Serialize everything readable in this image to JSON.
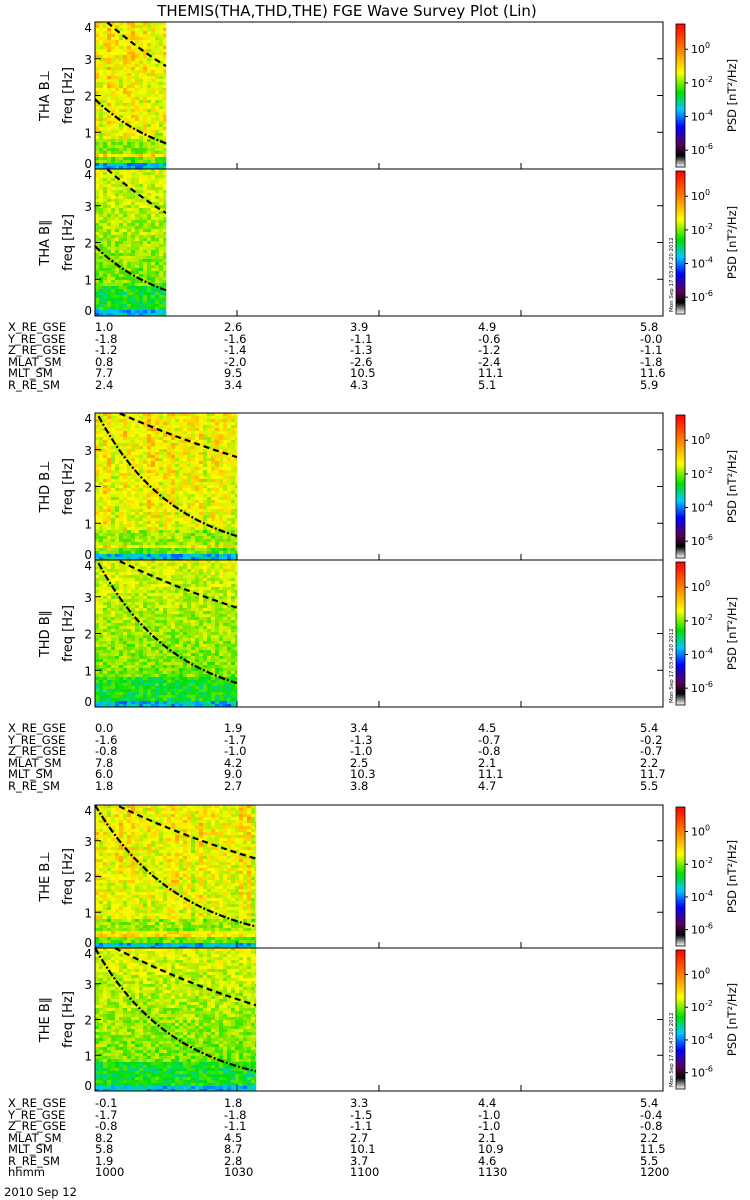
{
  "title": "THEMIS(THA,THD,THE) FGE Wave Survey Plot (Lin)",
  "date_label": "2010 Sep 12",
  "colorbar": {
    "ticks": [
      "10^0",
      "10^-2",
      "10^-4",
      "10^-6"
    ],
    "label": "PSD [nT²/Hz]",
    "stamp": "Mon Sep 17 03:47:20 2012"
  },
  "chart_data": {
    "type": "heatmap",
    "x_time_ticks": [
      "1000",
      "1030",
      "1100",
      "1130",
      "1200"
    ],
    "xlim": [
      "1000",
      "1200"
    ],
    "freq_axis": {
      "label": "freq [Hz]",
      "ticks": [
        0,
        1,
        2,
        3,
        4
      ],
      "ylim": [
        0,
        4
      ]
    },
    "colorbar_range_log10_psd": [
      -7,
      1.5
    ],
    "panels": [
      {
        "probe": "THA",
        "component": "B⊥",
        "ylabel": "THA B⊥",
        "data_end": "1015",
        "solid_curve": {
          "start": 1.9,
          "end": 0.7
        },
        "dashed_curve": {
          "start": 4.3,
          "end": 2.8
        }
      },
      {
        "probe": "THA",
        "component": "B∥",
        "ylabel": "THA B∥",
        "data_end": "1015",
        "solid_curve": {
          "start": 1.9,
          "end": 0.7
        },
        "dashed_curve": {
          "start": 4.3,
          "end": 2.8
        }
      },
      {
        "probe": "THD",
        "component": "B⊥",
        "ylabel": "THD B⊥",
        "data_end": "1030",
        "solid_curve": {
          "start": 4.1,
          "end": 0.65
        },
        "dashed_curve": {
          "start": 4.3,
          "end": 2.8
        }
      },
      {
        "probe": "THD",
        "component": "B∥",
        "ylabel": "THD B∥",
        "data_end": "1030",
        "solid_curve": {
          "start": 4.1,
          "end": 0.65
        },
        "dashed_curve": {
          "start": 4.3,
          "end": 2.7
        }
      },
      {
        "probe": "THE",
        "component": "B⊥",
        "ylabel": "THE B⊥",
        "data_end": "1034",
        "solid_curve": {
          "start": 4.0,
          "end": 0.6
        },
        "dashed_curve": {
          "start": 4.3,
          "end": 2.5
        }
      },
      {
        "probe": "THE",
        "component": "B∥",
        "ylabel": "THE B∥",
        "data_end": "1034",
        "solid_curve": {
          "start": 4.0,
          "end": 0.55
        },
        "dashed_curve": {
          "start": 4.3,
          "end": 2.4
        }
      }
    ]
  },
  "orbit_blocks": [
    {
      "labels": [
        "X_RE_GSE",
        "Y_RE_GSE",
        "Z_RE_GSE",
        "MLAT_SM",
        "MLT_SM",
        "R_RE_SM"
      ],
      "columns": [
        [
          "1.0",
          "-1.8",
          "-1.2",
          "0.8",
          "7.7",
          "2.4"
        ],
        [
          "2.6",
          "-1.6",
          "-1.4",
          "-2.0",
          "9.5",
          "3.4"
        ],
        [
          "3.9",
          "-1.1",
          "-1.3",
          "-2.6",
          "10.5",
          "4.3"
        ],
        [
          "4.9",
          "-0.6",
          "-1.2",
          "-2.4",
          "11.1",
          "5.1"
        ],
        [
          "5.8",
          "-0.0",
          "-1.1",
          "-1.8",
          "11.6",
          "5.9"
        ]
      ]
    },
    {
      "labels": [
        "X_RE_GSE",
        "Y_RE_GSE",
        "Z_RE_GSE",
        "MLAT_SM",
        "MLT_SM",
        "R_RE_SM"
      ],
      "columns": [
        [
          "0.0",
          "-1.6",
          "-0.8",
          "7.8",
          "6.0",
          "1.8"
        ],
        [
          "1.9",
          "-1.7",
          "-1.0",
          "4.2",
          "9.0",
          "2.7"
        ],
        [
          "3.4",
          "-1.3",
          "-1.0",
          "2.5",
          "10.3",
          "3.8"
        ],
        [
          "4.5",
          "-0.7",
          "-0.8",
          "2.1",
          "11.1",
          "4.7"
        ],
        [
          "5.4",
          "-0.2",
          "-0.7",
          "2.2",
          "11.7",
          "5.5"
        ]
      ]
    },
    {
      "labels": [
        "X_RE_GSE",
        "Y_RE_GSE",
        "Z_RE_GSE",
        "MLAT_SM",
        "MLT_SM",
        "R_RE_SM",
        "hhmm"
      ],
      "columns": [
        [
          "-0.1",
          "-1.7",
          "-0.8",
          "8.2",
          "5.8",
          "1.9",
          "1000"
        ],
        [
          "1.8",
          "-1.8",
          "-1.1",
          "4.5",
          "8.7",
          "2.8",
          "1030"
        ],
        [
          "3.3",
          "-1.5",
          "-1.1",
          "2.7",
          "10.1",
          "3.7",
          "1100"
        ],
        [
          "4.4",
          "-1.0",
          "-1.0",
          "2.1",
          "10.9",
          "4.6",
          "1130"
        ],
        [
          "5.4",
          "-0.4",
          "-0.8",
          "2.2",
          "11.5",
          "5.5",
          "1200"
        ]
      ]
    }
  ]
}
